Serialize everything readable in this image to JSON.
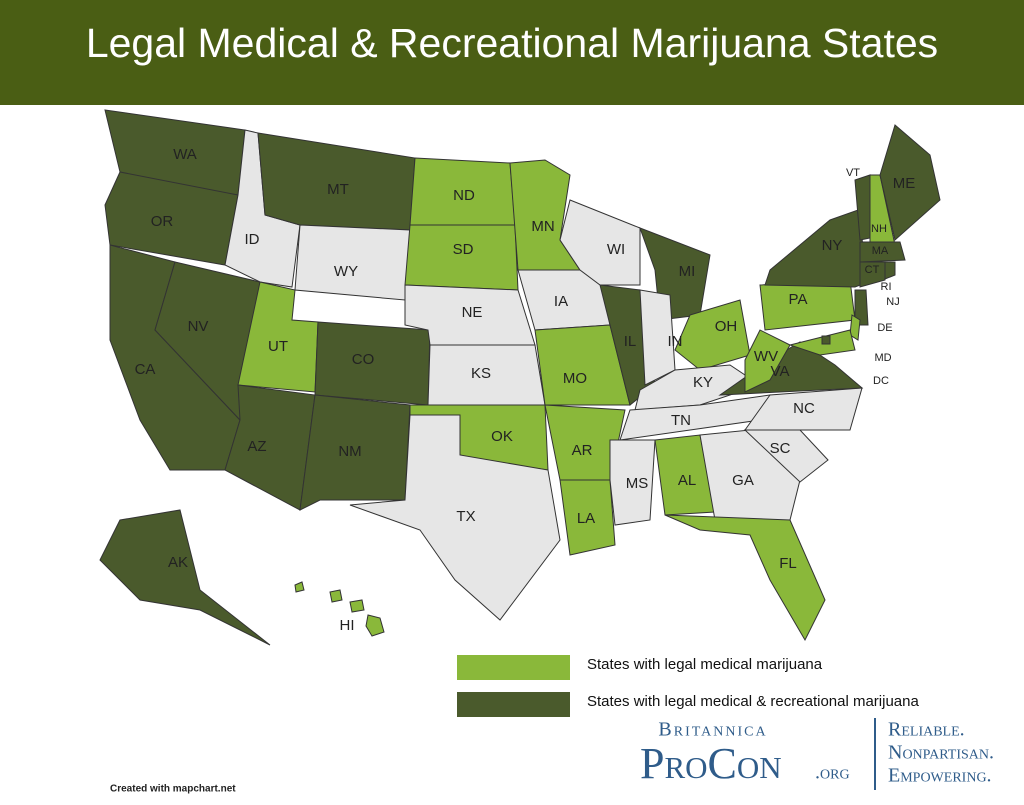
{
  "header": {
    "title": "Legal Medical & Recreational Marijuana States"
  },
  "legend": [
    {
      "label": "States with legal medical marijuana",
      "color": "#8ab83a"
    },
    {
      "label": "States with legal medical & recreational marijuana",
      "color": "#4a5a2c"
    }
  ],
  "map": {
    "states": [
      {
        "label": "WA",
        "category": 1
      },
      {
        "label": "OR",
        "category": 1
      },
      {
        "label": "CA",
        "category": 1
      },
      {
        "label": "NV",
        "category": 1
      },
      {
        "label": "ID",
        "category": null
      },
      {
        "label": "MT",
        "category": 1
      },
      {
        "label": "WY",
        "category": null
      },
      {
        "label": "UT",
        "category": 0
      },
      {
        "label": "CO",
        "category": 1
      },
      {
        "label": "AZ",
        "category": 1
      },
      {
        "label": "NM",
        "category": 1
      },
      {
        "label": "ND",
        "category": 0
      },
      {
        "label": "SD",
        "category": 0
      },
      {
        "label": "NE",
        "category": null
      },
      {
        "label": "KS",
        "category": null
      },
      {
        "label": "OK",
        "category": 0
      },
      {
        "label": "TX",
        "category": null
      },
      {
        "label": "MN",
        "category": 0
      },
      {
        "label": "IA",
        "category": null
      },
      {
        "label": "MO",
        "category": 0
      },
      {
        "label": "AR",
        "category": 0
      },
      {
        "label": "LA",
        "category": 0
      },
      {
        "label": "WI",
        "category": null
      },
      {
        "label": "IL",
        "category": 1
      },
      {
        "label": "MI",
        "category": 1
      },
      {
        "label": "IN",
        "category": null
      },
      {
        "label": "OH",
        "category": 0
      },
      {
        "label": "KY",
        "category": null
      },
      {
        "label": "TN",
        "category": null
      },
      {
        "label": "MS",
        "category": null
      },
      {
        "label": "AL",
        "category": 0
      },
      {
        "label": "GA",
        "category": null
      },
      {
        "label": "FL",
        "category": 0
      },
      {
        "label": "SC",
        "category": null
      },
      {
        "label": "NC",
        "category": null
      },
      {
        "label": "VA",
        "category": 1
      },
      {
        "label": "WV",
        "category": 0
      },
      {
        "label": "PA",
        "category": 0
      },
      {
        "label": "NY",
        "category": 1
      },
      {
        "label": "VT",
        "category": 1
      },
      {
        "label": "NH",
        "category": 0
      },
      {
        "label": "ME",
        "category": 1
      },
      {
        "label": "MA",
        "category": 1
      },
      {
        "label": "CT",
        "category": 1
      },
      {
        "label": "RI",
        "category": 1
      },
      {
        "label": "NJ",
        "category": 1
      },
      {
        "label": "DE",
        "category": 0
      },
      {
        "label": "MD",
        "category": 0
      },
      {
        "label": "DC",
        "category": 1
      },
      {
        "label": "AK",
        "category": 1
      },
      {
        "label": "HI",
        "category": 0
      }
    ]
  },
  "branding": {
    "top": "Britannica",
    "name": "ProCon",
    "suffix": ".org",
    "taglines": [
      "Reliable.",
      "Nonpartisan.",
      "Empowering."
    ]
  },
  "credit": "Created with mapchart.net"
}
